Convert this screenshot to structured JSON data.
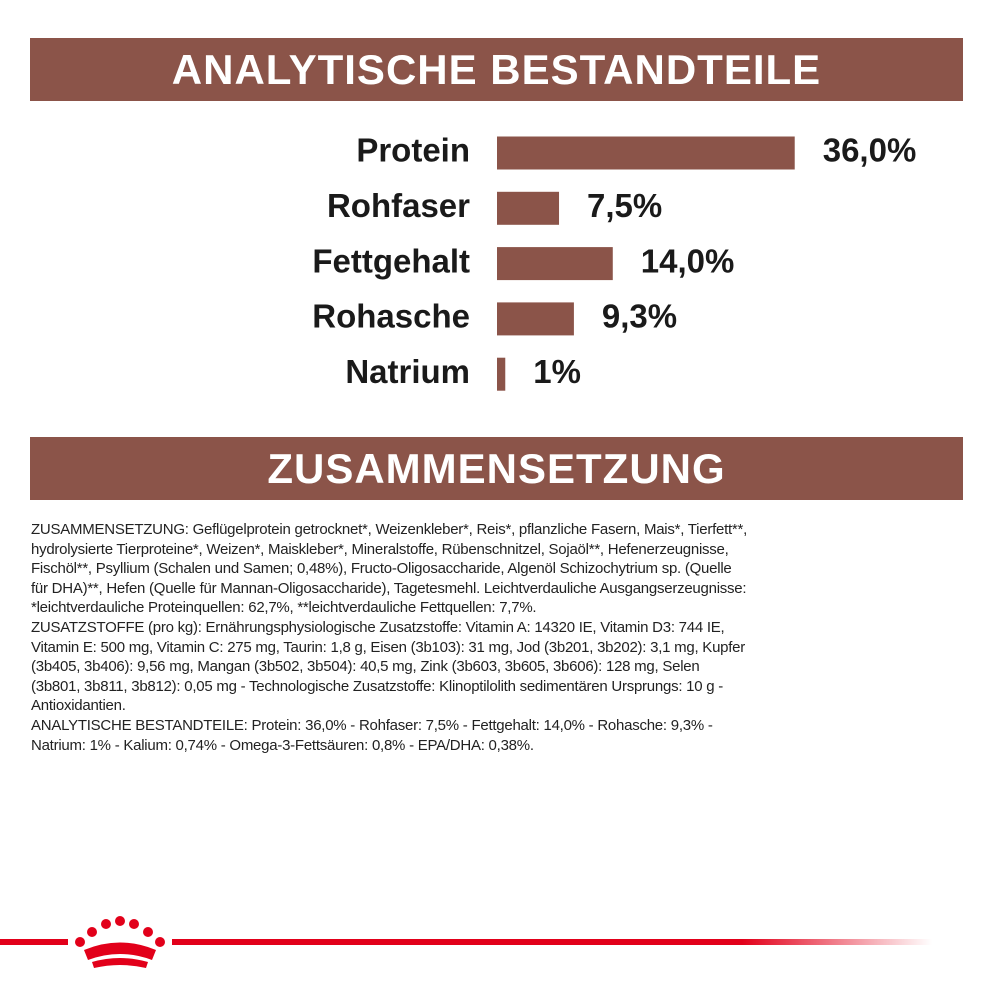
{
  "chart_data": {
    "type": "bar",
    "orientation": "horizontal",
    "title": "ANALYTISCHE BESTANDTEILE",
    "categories": [
      "Protein",
      "Rohfaser",
      "Fettgehalt",
      "Rohasche",
      "Natrium"
    ],
    "values": [
      36.0,
      7.5,
      14.0,
      9.3,
      1
    ],
    "value_labels": [
      "36,0%",
      "7,5%",
      "14,0%",
      "9,3%",
      "1%"
    ],
    "color": "#8b5449"
  },
  "composition": {
    "title": "ZUSAMMENSETZUNG",
    "lines": [
      "ZUSAMMENSETZUNG: Geflügelprotein getrocknet*, Weizenkleber*, Reis*, pflanzliche Fasern, Mais*, Tierfett**,",
      "hydrolysierte Tierproteine*, Weizen*, Maiskleber*, Mineralstoffe, Rübenschnitzel, Sojaöl**, Hefenerzeugnisse,",
      "Fischöl**, Psyllium (Schalen und Samen; 0,48%), Fructo-Oligosaccharide, Algenöl Schizochytrium sp. (Quelle",
      "für DHA)**, Hefen (Quelle für Mannan-Oligosaccharide), Tagetesmehl. Leichtverdauliche Ausgangserzeugnisse:",
      "*leichtverdauliche Proteinquellen: 62,7%, **leichtverdauliche Fettquellen: 7,7%.",
      "ZUSATZSTOFFE (pro kg): Ernährungsphysiologische Zusatzstoffe: Vitamin A: 14320 IE, Vitamin D3: 744 IE,",
      "Vitamin E: 500 mg, Vitamin C: 275 mg, Taurin: 1,8 g, Eisen (3b103): 31 mg, Jod (3b201, 3b202): 3,1 mg, Kupfer",
      "(3b405, 3b406): 9,56 mg, Mangan (3b502, 3b504): 40,5 mg, Zink (3b603, 3b605, 3b606): 128 mg, Selen",
      "(3b801, 3b811, 3b812): 0,05 mg - Technologische Zusatzstoffe: Klinoptilolith sedimentären Ursprungs: 10 g -",
      "Antioxidantien.",
      "ANALYTISCHE BESTANDTEILE: Protein: 36,0% - Rohfaser: 7,5% - Fettgehalt: 14,0% - Rohasche: 9,3% -",
      "Natrium: 1% - Kalium: 0,74% - Omega-3-Fettsäuren: 0,8% - EPA/DHA: 0,38%."
    ]
  }
}
